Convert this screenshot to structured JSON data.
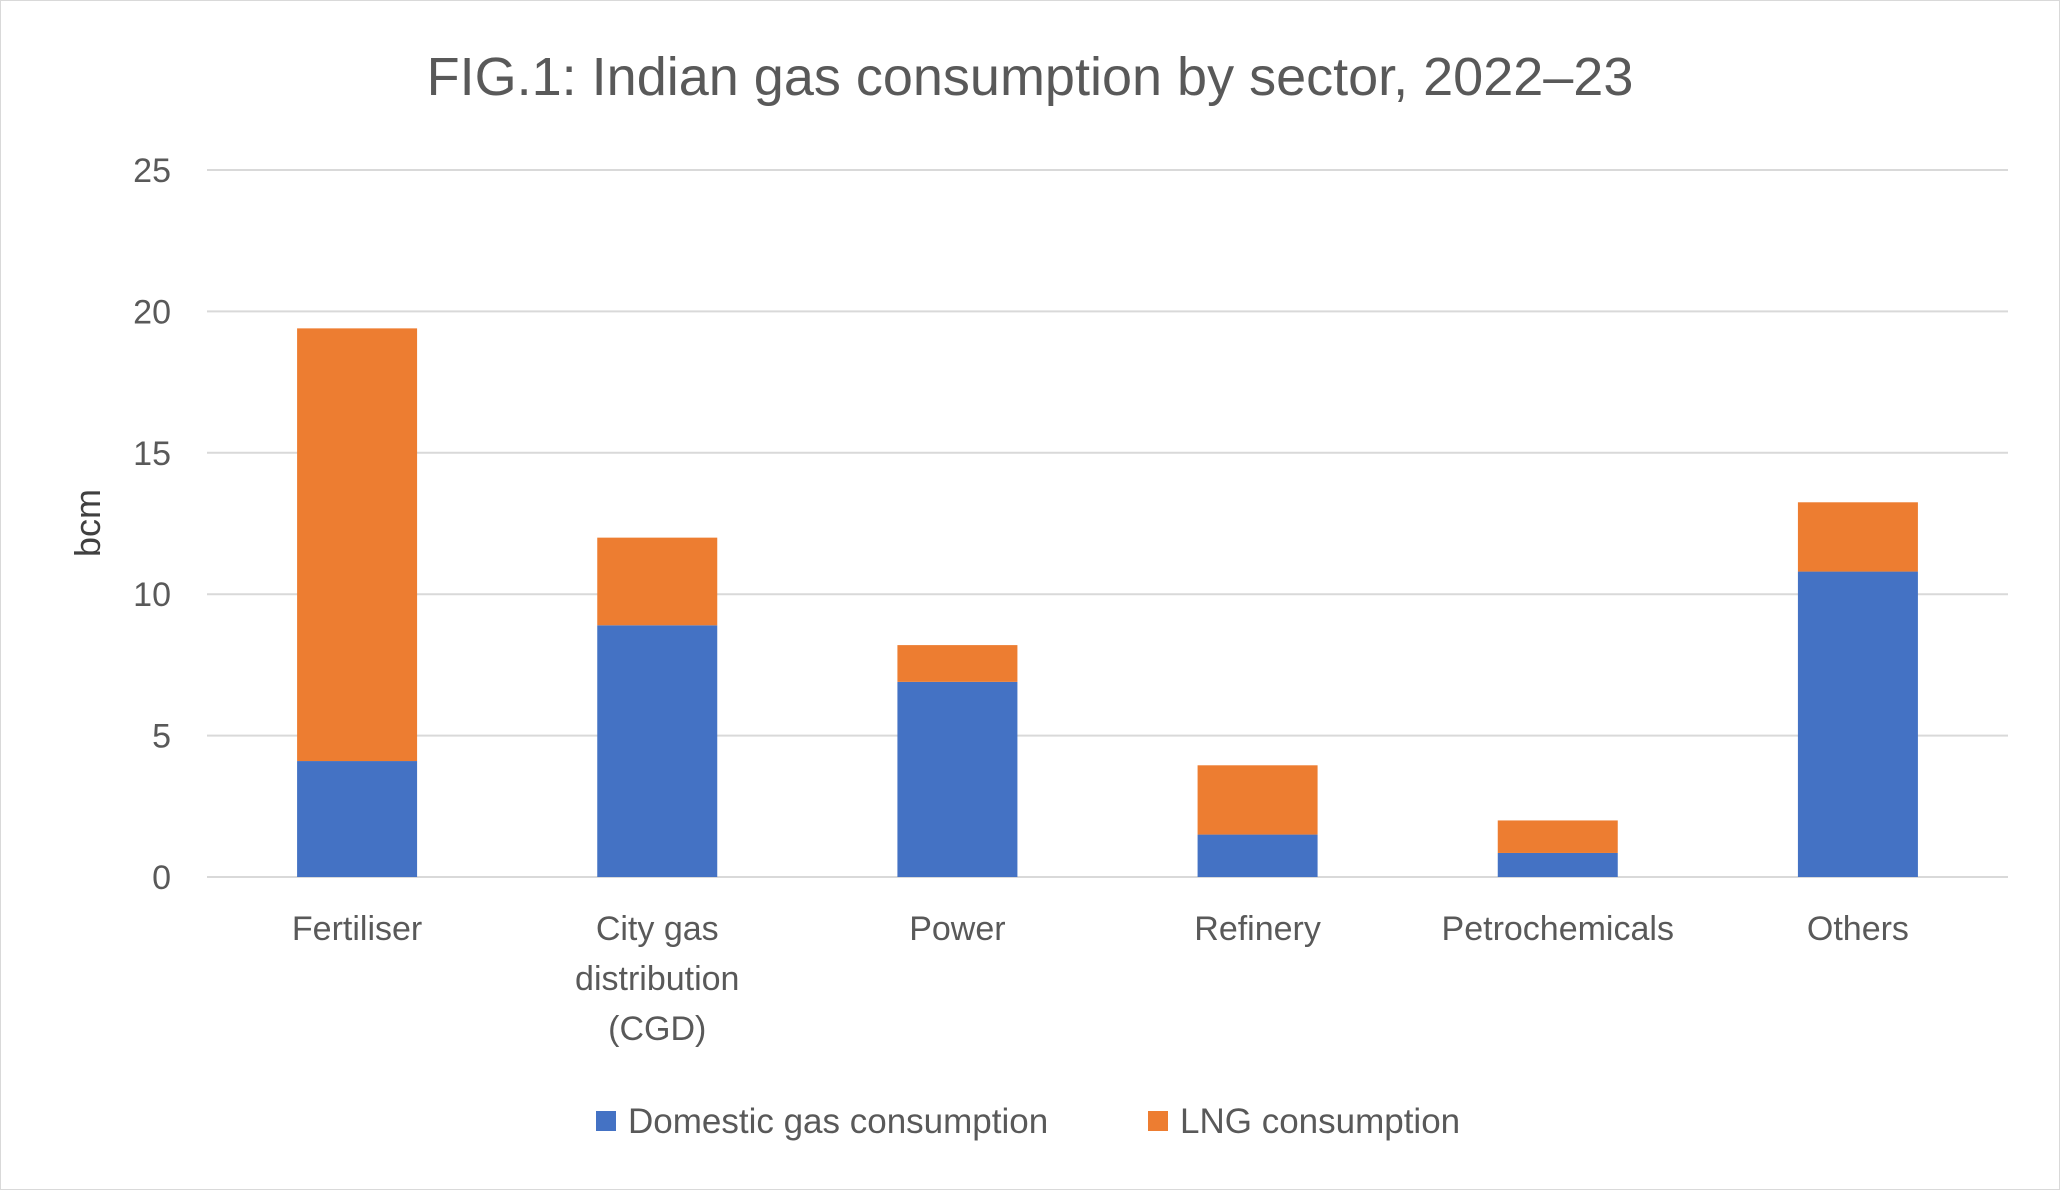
{
  "chart_data": {
    "type": "bar",
    "stacked": true,
    "title": "FIG.1: Indian gas consumption by sector, 2022–23",
    "xlabel": "",
    "ylabel": "bcm",
    "ylim": [
      0,
      25
    ],
    "yticks": [
      0,
      5,
      10,
      15,
      20,
      25
    ],
    "grid": true,
    "legend_position": "bottom",
    "categories": [
      [
        "Fertiliser"
      ],
      [
        "City gas",
        "distribution",
        "(CGD)"
      ],
      [
        "Power"
      ],
      [
        "Refinery"
      ],
      [
        "Petrochemicals"
      ],
      [
        "Others"
      ]
    ],
    "series": [
      {
        "name": "Domestic gas consumption",
        "color": "#4472c4",
        "values": [
          4.1,
          8.9,
          6.9,
          1.5,
          0.85,
          10.8
        ]
      },
      {
        "name": "LNG consumption",
        "color": "#ed7d31",
        "values": [
          15.3,
          3.1,
          1.3,
          2.45,
          1.15,
          2.45
        ]
      }
    ]
  }
}
